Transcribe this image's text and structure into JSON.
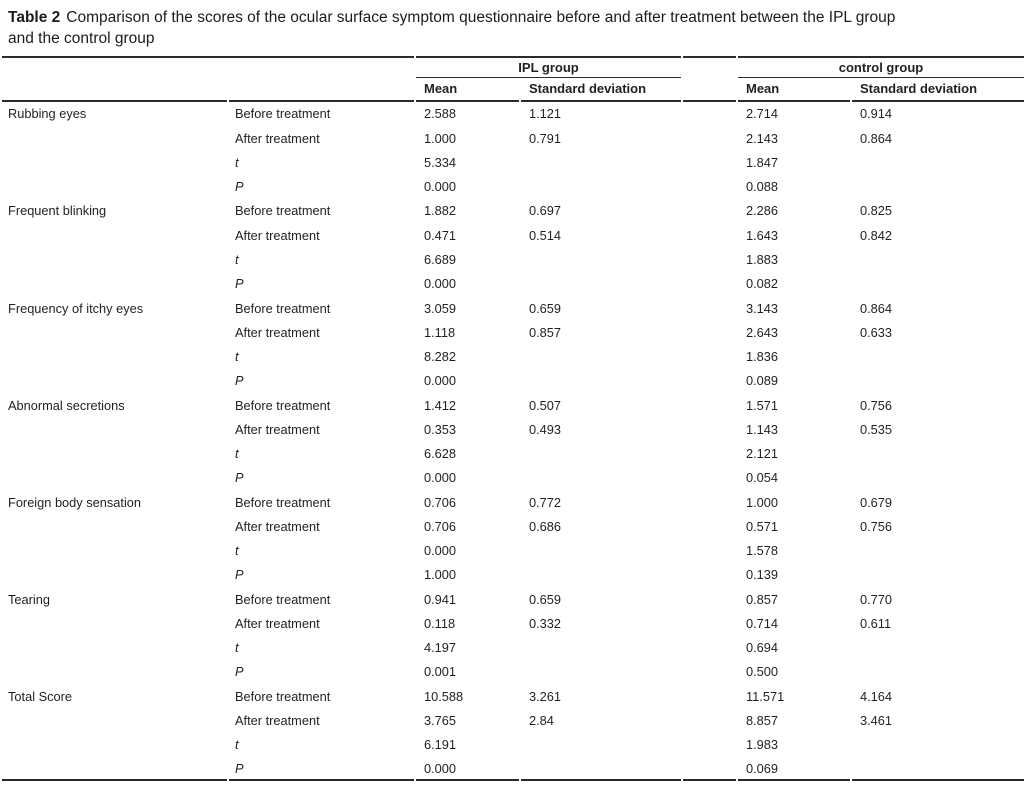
{
  "table": {
    "caption": {
      "label": "Table 2",
      "line1": "Comparison of the scores of the ocular surface symptom questionnaire before and after treatment between the IPL group",
      "line2": "and the control group"
    },
    "groups": {
      "ipl": "IPL group",
      "control": "control group"
    },
    "subheaders": {
      "ipl_mean": "Mean",
      "ipl_sd": "Standard deviation",
      "ctrl_mean": "Mean",
      "ctrl_sd": "Standard deviation"
    },
    "rule_color": "#2b2b2b",
    "symptoms": [
      {
        "name": "Rubbing eyes",
        "rows": [
          {
            "measure": "Before treatment",
            "italic": false,
            "ipl_mean": "2.588",
            "ipl_sd": "1.121",
            "ctrl_mean": "2.714",
            "ctrl_sd": "0.914"
          },
          {
            "measure": "After treatment",
            "italic": false,
            "ipl_mean": "1.000",
            "ipl_sd": "0.791",
            "ctrl_mean": "2.143",
            "ctrl_sd": "0.864"
          },
          {
            "measure": "t",
            "italic": true,
            "ipl_mean": "5.334",
            "ipl_sd": "",
            "ctrl_mean": "1.847",
            "ctrl_sd": ""
          },
          {
            "measure": "P",
            "italic": true,
            "ipl_mean": "0.000",
            "ipl_sd": "",
            "ctrl_mean": "0.088",
            "ctrl_sd": ""
          }
        ]
      },
      {
        "name": "Frequent blinking",
        "rows": [
          {
            "measure": "Before treatment",
            "italic": false,
            "ipl_mean": "1.882",
            "ipl_sd": "0.697",
            "ctrl_mean": "2.286",
            "ctrl_sd": "0.825"
          },
          {
            "measure": "After treatment",
            "italic": false,
            "ipl_mean": "0.471",
            "ipl_sd": "0.514",
            "ctrl_mean": "1.643",
            "ctrl_sd": "0.842"
          },
          {
            "measure": "t",
            "italic": true,
            "ipl_mean": "6.689",
            "ipl_sd": "",
            "ctrl_mean": "1.883",
            "ctrl_sd": ""
          },
          {
            "measure": "P",
            "italic": true,
            "ipl_mean": "0.000",
            "ipl_sd": "",
            "ctrl_mean": "0.082",
            "ctrl_sd": ""
          }
        ]
      },
      {
        "name": "Frequency of itchy eyes",
        "rows": [
          {
            "measure": "Before treatment",
            "italic": false,
            "ipl_mean": "3.059",
            "ipl_sd": "0.659",
            "ctrl_mean": "3.143",
            "ctrl_sd": "0.864"
          },
          {
            "measure": "After treatment",
            "italic": false,
            "ipl_mean": "1.118",
            "ipl_sd": "0.857",
            "ctrl_mean": "2.643",
            "ctrl_sd": "0.633"
          },
          {
            "measure": "t",
            "italic": true,
            "ipl_mean": "8.282",
            "ipl_sd": "",
            "ctrl_mean": "1.836",
            "ctrl_sd": ""
          },
          {
            "measure": "P",
            "italic": true,
            "ipl_mean": "0.000",
            "ipl_sd": "",
            "ctrl_mean": "0.089",
            "ctrl_sd": ""
          }
        ]
      },
      {
        "name": "Abnormal secretions",
        "rows": [
          {
            "measure": "Before treatment",
            "italic": false,
            "ipl_mean": "1.412",
            "ipl_sd": "0.507",
            "ctrl_mean": "1.571",
            "ctrl_sd": "0.756"
          },
          {
            "measure": "After treatment",
            "italic": false,
            "ipl_mean": "0.353",
            "ipl_sd": "0.493",
            "ctrl_mean": "1.143",
            "ctrl_sd": "0.535"
          },
          {
            "measure": "t",
            "italic": true,
            "ipl_mean": "6.628",
            "ipl_sd": "",
            "ctrl_mean": "2.121",
            "ctrl_sd": ""
          },
          {
            "measure": "P",
            "italic": true,
            "ipl_mean": "0.000",
            "ipl_sd": "",
            "ctrl_mean": "0.054",
            "ctrl_sd": ""
          }
        ]
      },
      {
        "name": "Foreign body sensation",
        "rows": [
          {
            "measure": "Before treatment",
            "italic": false,
            "ipl_mean": "0.706",
            "ipl_sd": "0.772",
            "ctrl_mean": "1.000",
            "ctrl_sd": "0.679"
          },
          {
            "measure": "After treatment",
            "italic": false,
            "ipl_mean": "0.706",
            "ipl_sd": "0.686",
            "ctrl_mean": "0.571",
            "ctrl_sd": "0.756"
          },
          {
            "measure": "t",
            "italic": true,
            "ipl_mean": "0.000",
            "ipl_sd": "",
            "ctrl_mean": "1.578",
            "ctrl_sd": ""
          },
          {
            "measure": "P",
            "italic": true,
            "ipl_mean": "1.000",
            "ipl_sd": "",
            "ctrl_mean": "0.139",
            "ctrl_sd": ""
          }
        ]
      },
      {
        "name": "Tearing",
        "rows": [
          {
            "measure": "Before treatment",
            "italic": false,
            "ipl_mean": "0.941",
            "ipl_sd": "0.659",
            "ctrl_mean": "0.857",
            "ctrl_sd": "0.770"
          },
          {
            "measure": "After treatment",
            "italic": false,
            "ipl_mean": "0.118",
            "ipl_sd": "0.332",
            "ctrl_mean": "0.714",
            "ctrl_sd": "0.611"
          },
          {
            "measure": "t",
            "italic": true,
            "ipl_mean": "4.197",
            "ipl_sd": "",
            "ctrl_mean": "0.694",
            "ctrl_sd": ""
          },
          {
            "measure": "P",
            "italic": true,
            "ipl_mean": "0.001",
            "ipl_sd": "",
            "ctrl_mean": "0.500",
            "ctrl_sd": ""
          }
        ]
      },
      {
        "name": "Total Score",
        "rows": [
          {
            "measure": "Before treatment",
            "italic": false,
            "ipl_mean": "10.588",
            "ipl_sd": "3.261",
            "ctrl_mean": "11.571",
            "ctrl_sd": "4.164"
          },
          {
            "measure": "After treatment",
            "italic": false,
            "ipl_mean": "3.765",
            "ipl_sd": "2.84",
            "ctrl_mean": "8.857",
            "ctrl_sd": "3.461"
          },
          {
            "measure": "t",
            "italic": true,
            "ipl_mean": "6.191",
            "ipl_sd": "",
            "ctrl_mean": "1.983",
            "ctrl_sd": ""
          },
          {
            "measure": "P",
            "italic": true,
            "ipl_mean": "0.000",
            "ipl_sd": "",
            "ctrl_mean": "0.069",
            "ctrl_sd": ""
          }
        ]
      }
    ]
  }
}
